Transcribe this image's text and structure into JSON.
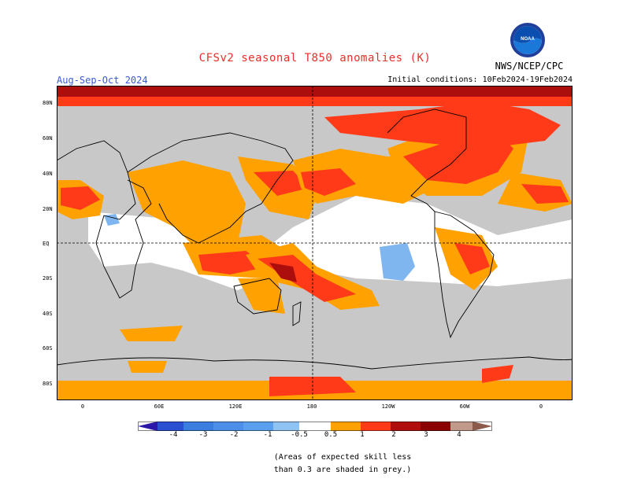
{
  "header": {
    "title": "CFSv2 seasonal T850 anomalies (K)",
    "period": "Aug-Sep-Oct 2024",
    "initial_conditions": "Initial conditions: 10Feb2024-19Feb2024",
    "agency": "NWS/NCEP/CPC",
    "logo_label": "NOAA"
  },
  "map": {
    "lat_labels": [
      "80N",
      "60N",
      "40N",
      "20N",
      "EQ",
      "20S",
      "40S",
      "60S",
      "80S"
    ],
    "lon_labels": [
      "0",
      "60E",
      "120E",
      "180",
      "120W",
      "60W",
      "0"
    ]
  },
  "colorbar": {
    "ticks": [
      "-4",
      "-3",
      "-2",
      "-1",
      "-0.5",
      "0.5",
      "1",
      "2",
      "3",
      "4"
    ],
    "colors": [
      "#2a17a8",
      "#2a4fd0",
      "#3a7fe0",
      "#5aa0ee",
      "#8fc3f4",
      "#ffffff",
      "#ffa100",
      "#ff3a18",
      "#b00d0d",
      "#8b0000",
      "#c29a8c",
      "#8b5a4a"
    ]
  },
  "footnote": {
    "line1": "(Areas of expected skill less",
    "line2": "than 0.3 are shaded in grey.)"
  }
}
